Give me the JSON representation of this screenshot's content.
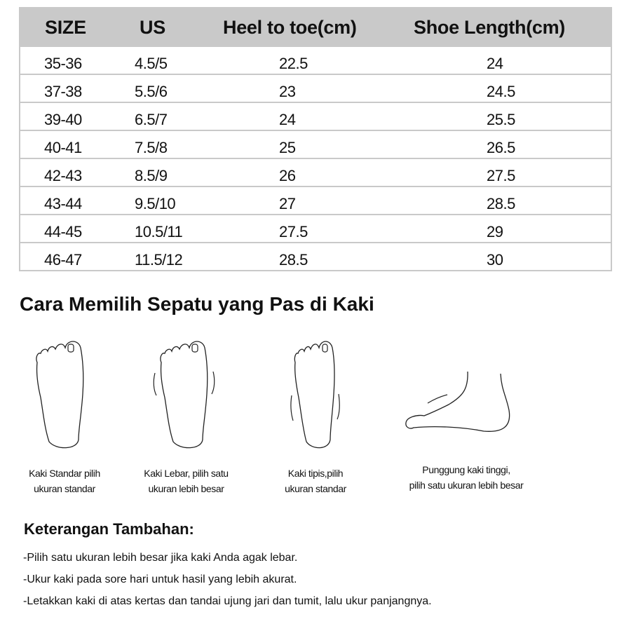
{
  "table": {
    "headers": [
      "SIZE",
      "US",
      "Heel to toe(cm)",
      "Shoe Length(cm)"
    ],
    "rows": [
      [
        "35-36",
        "4.5/5",
        "22.5",
        "24"
      ],
      [
        "37-38",
        "5.5/6",
        "23",
        "24.5"
      ],
      [
        "39-40",
        "6.5/7",
        "24",
        "25.5"
      ],
      [
        "40-41",
        "7.5/8",
        "25",
        "26.5"
      ],
      [
        "42-43",
        "8.5/9",
        "26",
        "27.5"
      ],
      [
        "43-44",
        "9.5/10",
        "27",
        "28.5"
      ],
      [
        "44-45",
        "10.5/11",
        "27.5",
        "29"
      ],
      [
        "46-47",
        "11.5/12",
        "28.5",
        "30"
      ]
    ],
    "header_color": "#c9c9c9"
  },
  "guide": {
    "title": "Cara Memilih Sepatu yang Pas di Kaki",
    "items": [
      {
        "icon": "foot-standard-icon",
        "line1": "Kaki Standar pilih",
        "line2": "ukuran standar"
      },
      {
        "icon": "foot-wide-icon",
        "line1": "Kaki Lebar, pilih satu",
        "line2": "ukuran lebih besar"
      },
      {
        "icon": "foot-thin-icon",
        "line1": "Kaki tipis,pilih",
        "line2": "ukuran standar"
      },
      {
        "icon": "foot-high-instep-icon",
        "line1": "Punggung kaki tinggi,",
        "line2": "pilih satu ukuran lebih besar"
      }
    ]
  },
  "notes": {
    "title": "Keterangan Tambahan:",
    "items": [
      "-Pilih satu ukuran lebih besar jika kaki Anda agak lebar.",
      "-Ukur kaki pada sore hari untuk hasil yang lebih akurat.",
      "-Letakkan kaki di atas kertas dan tandai ujung jari dan tumit, lalu ukur panjangnya."
    ]
  }
}
